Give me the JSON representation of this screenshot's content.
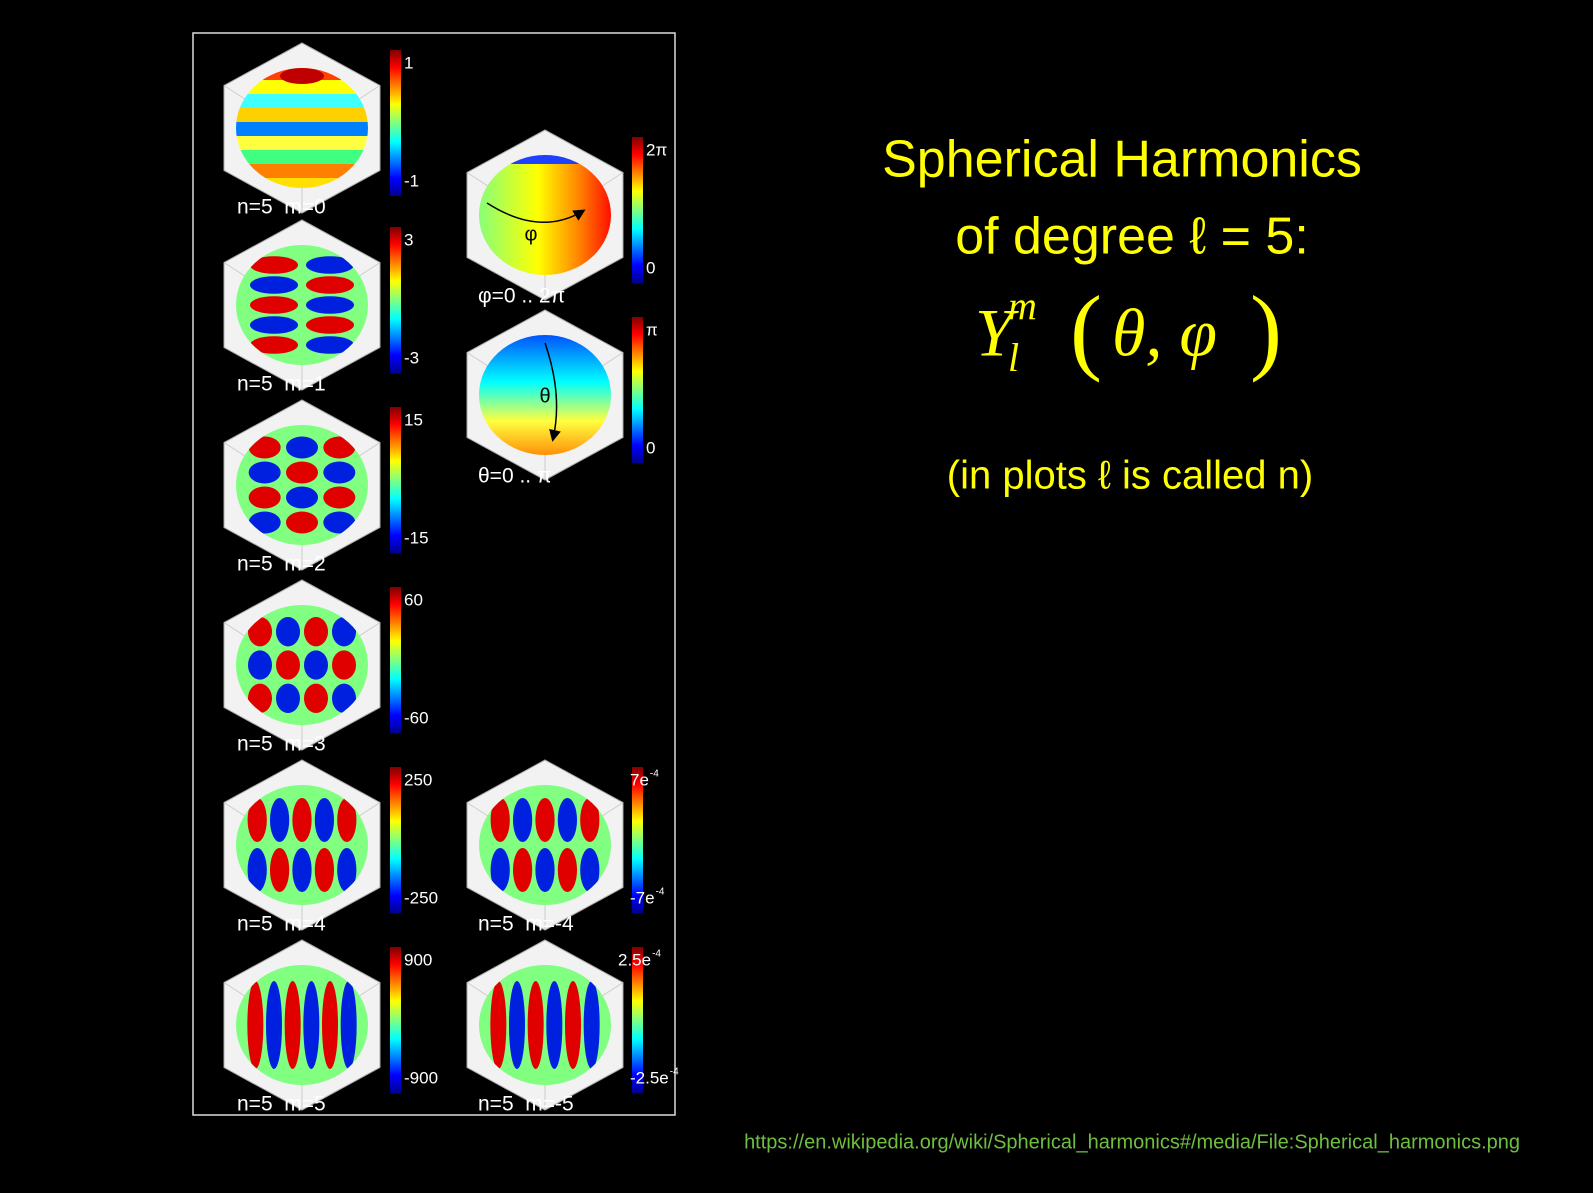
{
  "slide": {
    "title_lines": [
      "Spherical Harmonics",
      "of degree ℓ = 5:"
    ],
    "formula": {
      "symbol": "Y",
      "subscript": "l",
      "superscript": "m",
      "open": "(",
      "arguments": "θ, φ",
      "close": ")"
    },
    "note": "(in plots ℓ is called n)",
    "source": "https://en.wikipedia.org/wiki/Spherical_harmonics#/media/File:Spherical_harmonics.png",
    "plots": [
      {
        "label": "n=5  m=0",
        "max": "1",
        "min": "-1"
      },
      {
        "label": "n=5  m=1",
        "max": "3",
        "min": "-3"
      },
      {
        "label": "n=5  m=2",
        "max": "15",
        "min": "-15"
      },
      {
        "label": "n=5  m=3",
        "max": "60",
        "min": "-60"
      },
      {
        "label": "n=5  m=4",
        "max": "250",
        "min": "-250"
      },
      {
        "label": "n=5  m=5",
        "max": "900",
        "min": "-900"
      },
      {
        "label": "φ=0 .. 2π",
        "max": "2π",
        "min": "0",
        "annotation": "φ"
      },
      {
        "label": "θ=0 .. π",
        "max": "π",
        "min": "0",
        "annotation": "θ"
      },
      {
        "label": "n=5  m=-4",
        "max": {
          "base": "7e",
          "exp": "-4"
        },
        "min": {
          "base": "-7e",
          "exp": "-4"
        }
      },
      {
        "label": "n=5  m=-5",
        "max": {
          "base": "2.5e",
          "exp": "-4"
        },
        "min": {
          "base": "-2.5e",
          "exp": "-4"
        }
      }
    ]
  }
}
